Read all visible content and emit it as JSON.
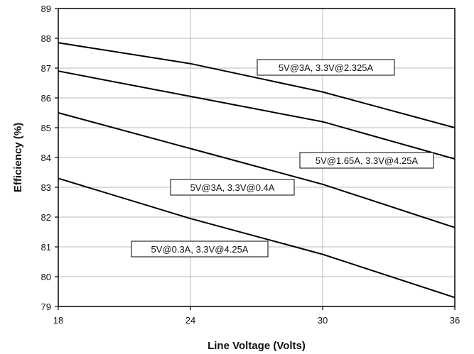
{
  "chart_data": {
    "type": "line",
    "xlabel": "Line Voltage (Volts)",
    "ylabel": "Efficiency (%)",
    "xlim": [
      18,
      36
    ],
    "ylim": [
      79,
      89
    ],
    "x_ticks": [
      18,
      24,
      30,
      36
    ],
    "y_ticks": [
      79,
      80,
      81,
      82,
      83,
      84,
      85,
      86,
      87,
      88,
      89
    ],
    "grid": true,
    "series": [
      {
        "name": "5V@3A, 3.3V@2.325A",
        "x": [
          18,
          24,
          30,
          36
        ],
        "values": [
          87.85,
          87.15,
          86.2,
          85.0
        ]
      },
      {
        "name": "5V@1.65A, 3.3V@4.25A",
        "x": [
          18,
          24,
          30,
          36
        ],
        "values": [
          86.9,
          86.05,
          85.2,
          83.95
        ]
      },
      {
        "name": "5V@3A, 3.3V@0.4A",
        "x": [
          18,
          24,
          30,
          36
        ],
        "values": [
          85.5,
          84.3,
          83.1,
          81.65
        ]
      },
      {
        "name": "5V@0.3A, 3.3V@4.25A",
        "x": [
          18,
          24,
          30,
          36
        ],
        "values": [
          83.3,
          81.95,
          80.75,
          79.3
        ]
      }
    ]
  }
}
